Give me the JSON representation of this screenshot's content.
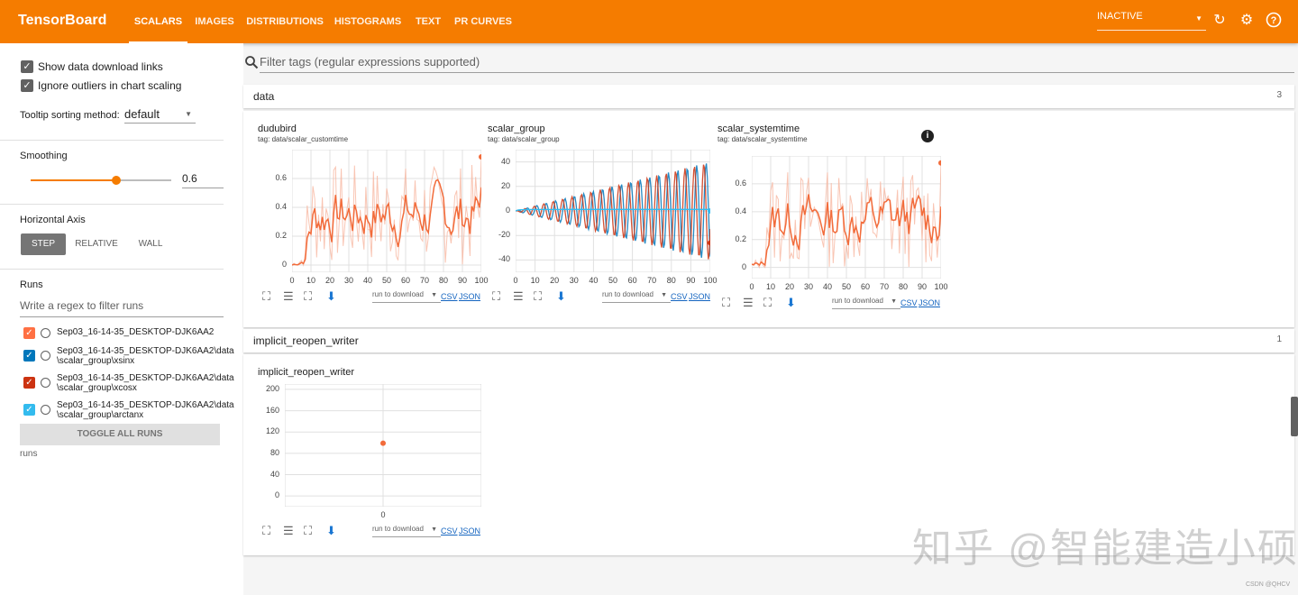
{
  "app": {
    "brand": "TensorBoard",
    "tabs": [
      {
        "label": "Scalars"
      },
      {
        "label": "Images"
      },
      {
        "label": "Distributions"
      },
      {
        "label": "Histograms"
      },
      {
        "label": "Text"
      },
      {
        "label": "PR Curves"
      }
    ],
    "active_tab": "Scalars",
    "status_select": "INACTIVE"
  },
  "sidebar": {
    "show_download_links": "Show data download links",
    "ignore_outliers": "Ignore outliers in chart scaling",
    "tooltip_label": "Tooltip sorting method:",
    "tooltip_value": "default",
    "smoothing_label": "Smoothing",
    "smoothing_value": "0.6",
    "smoothing_level": 0.6,
    "horizontal_axis_label": "Horizontal Axis",
    "axis_options": [
      "Step",
      "Relative",
      "Wall"
    ],
    "axis_selected": "Step",
    "runs_label": "Runs",
    "runs_filter_placeholder": "Write a regex to filter runs",
    "runs": [
      {
        "line1": "Sep03_16-14-35_DESKTOP-DJK6AA2",
        "line2": "",
        "color": "#ff7043"
      },
      {
        "line1": "Sep03_16-14-35_DESKTOP-DJK6AA2\\data",
        "line2": "\\scalar_group\\xsinx",
        "color": "#0077bb"
      },
      {
        "line1": "Sep03_16-14-35_DESKTOP-DJK6AA2\\data",
        "line2": "\\scalar_group\\xcosx",
        "color": "#cc3311"
      },
      {
        "line1": "Sep03_16-14-35_DESKTOP-DJK6AA2\\data",
        "line2": "\\scalar_group\\arctanx",
        "color": "#33bbee"
      }
    ],
    "toggle_all": "Toggle all runs",
    "runs_footer": "runs"
  },
  "main": {
    "filter_placeholder": "Filter tags (regular expressions supported)",
    "groups": [
      {
        "name": "data",
        "count": "3"
      },
      {
        "name": "implicit_reopen_writer",
        "count": "1"
      }
    ],
    "run_to_download": "run to download",
    "csv": "CSV",
    "json": "JSON"
  },
  "chart_data": [
    {
      "type": "line",
      "title": "dudubird",
      "tag": "tag: data/scalar_customtime",
      "x_ticks": [
        "0",
        "10",
        "20",
        "30",
        "40",
        "50",
        "60",
        "70",
        "80",
        "90",
        "100"
      ],
      "y_ticks": [
        "0",
        "0.2",
        "0.4",
        "0.6"
      ],
      "xlim": [
        0,
        100
      ],
      "ylim": [
        -0.05,
        0.8
      ],
      "seed": 7,
      "smoothed_color": "#f26b3a",
      "raw_color": "#f7b7a0",
      "end_value": 0.75
    },
    {
      "type": "line",
      "title": "scalar_group",
      "tag": "tag: data/scalar_group",
      "x_ticks": [
        "0",
        "10",
        "20",
        "30",
        "40",
        "50",
        "60",
        "70",
        "80",
        "90",
        "100"
      ],
      "y_ticks": [
        "40",
        "20",
        "0",
        "-20",
        "-40"
      ],
      "xlim": [
        0,
        100
      ],
      "ylim": [
        -50,
        50
      ],
      "series_colors": [
        "#0077bb",
        "#cc3311",
        "#33bbee"
      ]
    },
    {
      "type": "line",
      "title": "scalar_systemtime",
      "tag": "tag: data/scalar_systemtime",
      "x_ticks": [
        "0",
        "10",
        "20",
        "30",
        "40",
        "50",
        "60",
        "70",
        "80",
        "90",
        "100"
      ],
      "y_ticks": [
        "0.6",
        "0.4",
        "0.2",
        "0"
      ],
      "xlim": [
        0,
        100
      ],
      "ylim": [
        -0.08,
        0.8
      ],
      "seed": 13,
      "smoothed_color": "#f26b3a",
      "raw_color": "#f7b7a0",
      "end_value": 0.75
    },
    {
      "type": "scatter",
      "title": "implicit_reopen_writer",
      "x_ticks": [
        "0"
      ],
      "y_ticks": [
        "200",
        "160",
        "120",
        "80",
        "40",
        "0"
      ],
      "xlim": [
        -1,
        1
      ],
      "ylim": [
        -20,
        210
      ],
      "x": [
        0
      ],
      "y": [
        99
      ],
      "color": "#f26b3a"
    }
  ],
  "watermark": "知乎 @智能建造小硕",
  "footer_mark": "CSDN @QHCV"
}
